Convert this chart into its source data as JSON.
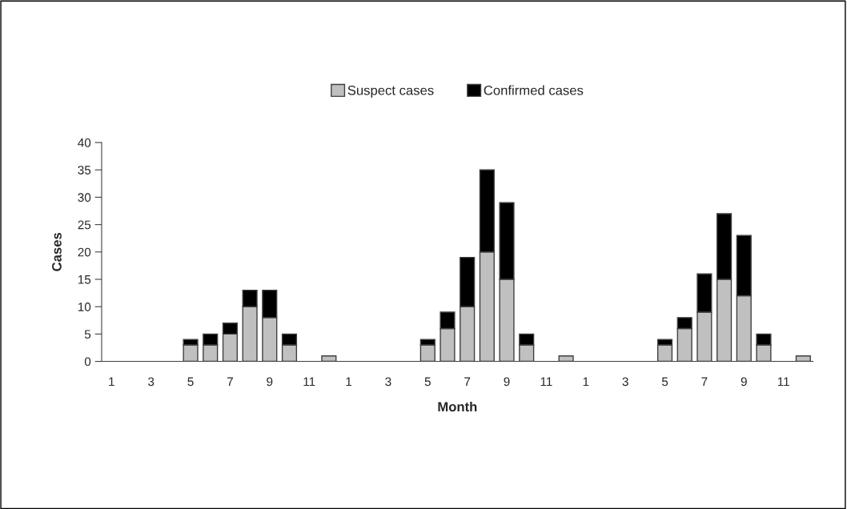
{
  "chart_data": {
    "type": "bar",
    "stacked": true,
    "xlabel": "Month",
    "ylabel": "Cases",
    "categories": [
      "1",
      null,
      "3",
      null,
      "5",
      null,
      "7",
      null,
      "9",
      null,
      "11",
      null,
      "1",
      null,
      "3",
      null,
      "5",
      null,
      "7",
      null,
      "9",
      null,
      "11",
      null,
      "1",
      null,
      "3",
      null,
      "5",
      null,
      "7",
      null,
      "9",
      null,
      "11",
      null
    ],
    "series": [
      {
        "name": "Suspect cases",
        "color": "#c0c0c0",
        "values": [
          0,
          0,
          0,
          0,
          3,
          3,
          5,
          10,
          8,
          3,
          0,
          1,
          0,
          0,
          0,
          0,
          3,
          6,
          10,
          20,
          15,
          3,
          0,
          1,
          0,
          0,
          0,
          0,
          3,
          6,
          9,
          15,
          12,
          3,
          0,
          1
        ]
      },
      {
        "name": "Confirmed cases",
        "color": "#000000",
        "values": [
          0,
          0,
          0,
          0,
          1,
          2,
          2,
          3,
          5,
          2,
          0,
          0,
          0,
          0,
          0,
          0,
          1,
          3,
          9,
          15,
          14,
          2,
          0,
          0,
          0,
          0,
          0,
          0,
          1,
          2,
          7,
          12,
          11,
          2,
          0,
          0
        ]
      }
    ],
    "ylim": [
      0,
      40
    ],
    "yticks": [
      0,
      5,
      10,
      15,
      20,
      25,
      30,
      35,
      40
    ],
    "grid": false,
    "legend": "top"
  }
}
